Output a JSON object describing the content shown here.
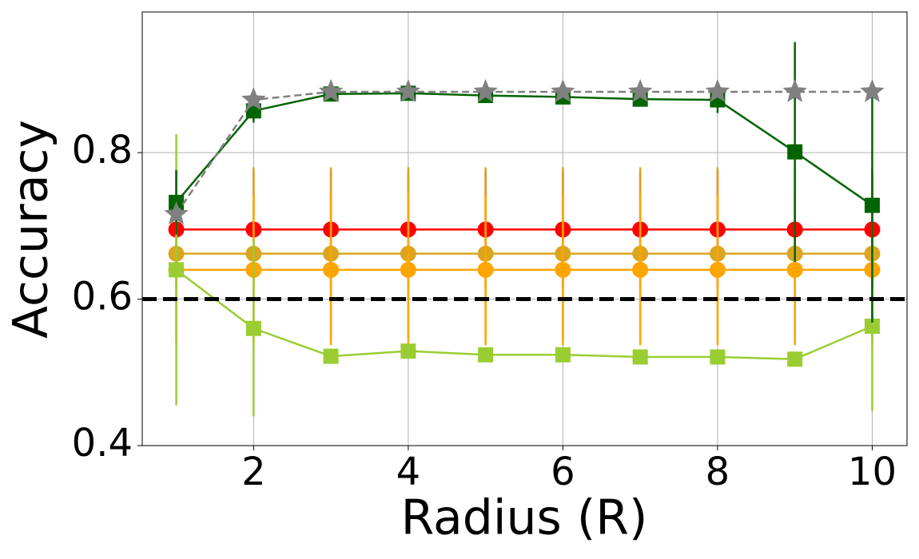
{
  "chart_data": {
    "type": "line",
    "xlabel": "Radius (R)",
    "ylabel": "Accuracy",
    "x": [
      1,
      2,
      3,
      4,
      5,
      6,
      7,
      8,
      9,
      10
    ],
    "xlim": [
      0.56,
      10.45
    ],
    "ylim": [
      0.4,
      0.992
    ],
    "xticks": [
      2,
      4,
      6,
      8,
      10
    ],
    "yticks": [
      0.4,
      0.6,
      0.8
    ],
    "grid": true,
    "reference_line": {
      "value": 0.6,
      "color": "#000000"
    },
    "series": [
      {
        "color": "#ff0000",
        "marker": "circle",
        "linestyle": "solid",
        "values": [
          0.695,
          0.695,
          0.695,
          0.695,
          0.695,
          0.695,
          0.695,
          0.695,
          0.695,
          0.695
        ],
        "errors": [
          0.08,
          0.08,
          0.08,
          0.08,
          0.08,
          0.08,
          0.08,
          0.08,
          0.08,
          0.08
        ]
      },
      {
        "color": "#daa520",
        "marker": "circle",
        "linestyle": "solid",
        "values": [
          0.662,
          0.662,
          0.662,
          0.662,
          0.662,
          0.662,
          0.662,
          0.662,
          0.662,
          0.662
        ],
        "errors": [
          0.118,
          0.118,
          0.118,
          0.118,
          0.118,
          0.118,
          0.118,
          0.118,
          0.118,
          0.118
        ]
      },
      {
        "color": "#ffa500",
        "marker": "circle",
        "linestyle": "solid",
        "values": [
          0.64,
          0.64,
          0.64,
          0.64,
          0.64,
          0.64,
          0.64,
          0.64,
          0.64,
          0.64
        ],
        "errors": [
          0.103,
          0.103,
          0.103,
          0.103,
          0.103,
          0.103,
          0.103,
          0.103,
          0.103,
          0.103
        ]
      },
      {
        "color": "#9acd32",
        "marker": "square",
        "linestyle": "solid",
        "values": [
          0.64,
          0.56,
          0.522,
          0.529,
          0.524,
          0.524,
          0.521,
          0.521,
          0.518,
          0.563
        ],
        "errors": [
          0.185,
          0.12,
          0.01,
          0.005,
          0.01,
          0.005,
          0.005,
          0.005,
          0.005,
          0.116
        ]
      },
      {
        "color": "#006400",
        "marker": "square",
        "linestyle": "solid",
        "values": [
          0.732,
          0.857,
          0.88,
          0.881,
          0.878,
          0.876,
          0.873,
          0.872,
          0.801,
          0.728
        ],
        "errors": [
          0.044,
          0.016,
          0.005,
          0.005,
          0.005,
          0.005,
          0.005,
          0.018,
          0.15,
          0.16
        ]
      },
      {
        "color": "#808080",
        "marker": "star",
        "linestyle": "dashed",
        "values": [
          0.716,
          0.872,
          0.883,
          0.883,
          0.883,
          0.883,
          0.883,
          0.883,
          0.883,
          0.883
        ]
      }
    ]
  }
}
